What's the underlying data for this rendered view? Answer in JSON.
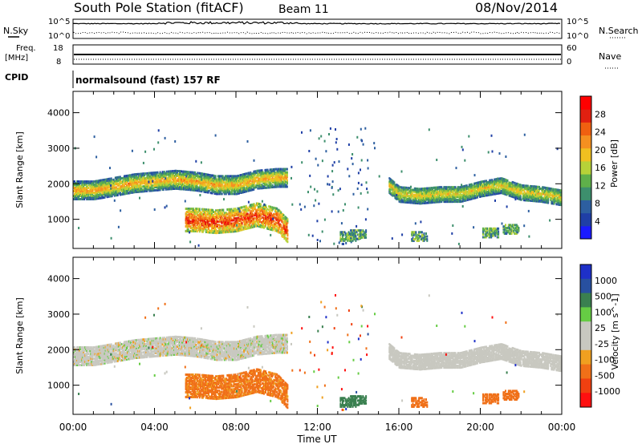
{
  "header": {
    "station": "South Pole Station (fitACF)",
    "beam": "Beam 11",
    "date": "08/Nov/2014"
  },
  "info_panels": {
    "nsky_label": "N.Sky",
    "nsky_ticks": [
      "10^5",
      "10^0"
    ],
    "nsearch_label": "N.Search",
    "nsearch_ticks": [
      "10^5",
      "10^0"
    ],
    "freq_label_1": "Freq.",
    "freq_label_2": "[MHz]",
    "freq_ticks": [
      "18",
      "8"
    ],
    "nave_label": "Nave",
    "nave_ticks": [
      "60",
      "0"
    ],
    "cpid_label": "CPID",
    "cpid_value": "normalsound (fast) 157 RF"
  },
  "colors": {
    "power_scale": [
      "#1a1aff",
      "#1f3fa6",
      "#2d5fa0",
      "#3d8f6d",
      "#5fb04a",
      "#b7d238",
      "#f0c020",
      "#f59020",
      "#f06010",
      "#e02010",
      "#ff0000"
    ],
    "velocity_scale": [
      "#1e30c8",
      "#2850a0",
      "#3a8050",
      "#66cc44",
      "#c8c8c0",
      "#c8c8c0",
      "#f0a020",
      "#f07018",
      "#f04010",
      "#ff1010"
    ],
    "axis": "#000000"
  },
  "chart_data": [
    {
      "type": "heatmap",
      "title": "",
      "ylabel": "Slant Range [km]",
      "xlabel": "",
      "x_unit": "hours UT",
      "xlim": [
        0,
        24
      ],
      "ylim": [
        180,
        4600
      ],
      "x_ticks": [
        "00:00",
        "04:00",
        "08:00",
        "12:00",
        "16:00",
        "20:00",
        "00:00"
      ],
      "y_ticks": [
        "1000",
        "2000",
        "3000",
        "4000"
      ],
      "colorbar": {
        "label": "Power [dB]",
        "range": [
          0,
          32
        ],
        "ticks": [
          "4",
          "8",
          "12",
          "16",
          "20",
          "24",
          "28"
        ]
      },
      "features": [
        {
          "name": "main band",
          "x": [
            0,
            1,
            2,
            3,
            4,
            5,
            6,
            7,
            8,
            9,
            10
          ],
          "range_km": [
            1850,
            1850,
            1950,
            2050,
            2100,
            2150,
            2100,
            2000,
            2000,
            2150,
            2200
          ]
        },
        {
          "name": "late band",
          "x": [
            15.5,
            16,
            17,
            18,
            19,
            20,
            21,
            22,
            23,
            24
          ],
          "range_km": [
            2000,
            1750,
            1700,
            1750,
            1750,
            1900,
            2000,
            1800,
            1750,
            1650
          ]
        },
        {
          "name": "near range echoes",
          "x": [
            5.5,
            6,
            7,
            8,
            9,
            10,
            10.5
          ],
          "range_km": [
            1000,
            1000,
            950,
            1000,
            1150,
            1000,
            700
          ]
        }
      ]
    },
    {
      "type": "heatmap",
      "title": "",
      "ylabel": "Slant Range [km]",
      "xlabel": "Time UT",
      "x_unit": "hours UT",
      "xlim": [
        0,
        24
      ],
      "ylim": [
        180,
        4600
      ],
      "x_ticks": [
        "00:00",
        "04:00",
        "08:00",
        "12:00",
        "16:00",
        "20:00",
        "00:00"
      ],
      "y_ticks": [
        "1000",
        "2000",
        "3000",
        "4000"
      ],
      "colorbar": {
        "label": "Velocity [m s^-1]",
        "ticks": [
          "1000",
          "500",
          "100",
          "25",
          "-25",
          "-100",
          "-500",
          "-1000"
        ]
      },
      "features": [
        {
          "name": "ground scatter band",
          "velocity": "low (±25)",
          "x": [
            0,
            10,
            15.5,
            24
          ]
        },
        {
          "name": "negative velocity echoes",
          "velocity": "-100 to -500",
          "x": [
            5.5,
            10.5
          ]
        },
        {
          "name": "positive velocity echoes",
          "velocity": "100 to 1000",
          "x": [
            7.5,
            12,
            13.8
          ]
        }
      ]
    }
  ]
}
